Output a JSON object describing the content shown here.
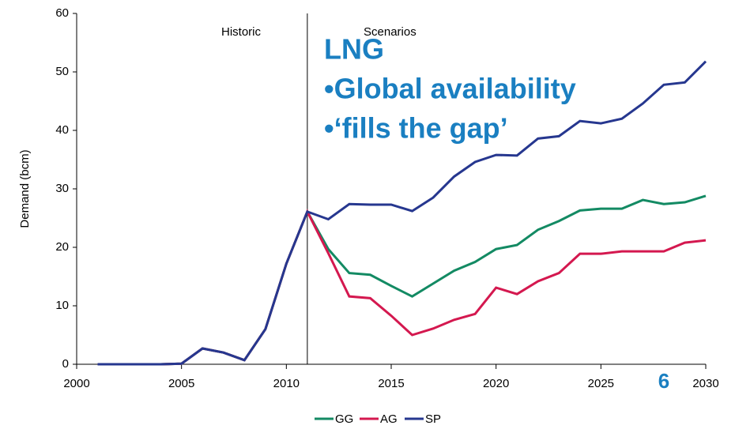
{
  "chart_data": {
    "type": "line",
    "y_label": "Demand (bcm)",
    "x": [
      2001,
      2002,
      2003,
      2004,
      2005,
      2006,
      2007,
      2008,
      2009,
      2010,
      2011,
      2012,
      2013,
      2014,
      2015,
      2016,
      2017,
      2018,
      2019,
      2020,
      2021,
      2022,
      2023,
      2024,
      2025,
      2026,
      2027,
      2028,
      2029,
      2030
    ],
    "series": [
      {
        "name": "GG",
        "color": "#138a63",
        "values": [
          0,
          0,
          0,
          0,
          0.1,
          2.7,
          2.0,
          0.7,
          6.0,
          17.2,
          26.1,
          19.7,
          15.6,
          15.3,
          13.4,
          11.6,
          13.8,
          16.0,
          17.5,
          19.7,
          20.4,
          23.0,
          24.5,
          26.3,
          26.6,
          26.6,
          28.1,
          27.4,
          27.7,
          28.8
        ]
      },
      {
        "name": "AG",
        "color": "#d4184f",
        "values": [
          0,
          0,
          0,
          0,
          0.1,
          2.7,
          2.0,
          0.7,
          6.0,
          17.2,
          26.1,
          19.0,
          11.6,
          11.3,
          8.3,
          5.0,
          6.1,
          7.6,
          8.6,
          13.1,
          12.0,
          14.2,
          15.6,
          18.9,
          18.9,
          19.3,
          19.3,
          19.3,
          20.8,
          21.2
        ]
      },
      {
        "name": "SP",
        "color": "#26378f",
        "values": [
          0,
          0,
          0,
          0,
          0.1,
          2.7,
          2.0,
          0.7,
          6.0,
          17.2,
          26.1,
          24.8,
          27.4,
          27.3,
          27.3,
          26.2,
          28.5,
          32.1,
          34.6,
          35.8,
          35.7,
          38.6,
          39.0,
          41.6,
          41.2,
          42.0,
          44.6,
          47.8,
          48.2,
          51.8
        ]
      }
    ],
    "xlim": [
      2000,
      2030
    ],
    "xticks": [
      2000,
      2005,
      2010,
      2015,
      2020,
      2025,
      2030
    ],
    "ylim": [
      0,
      60
    ],
    "yticks": [
      0,
      10,
      20,
      30,
      40,
      50,
      60
    ],
    "divider_x": 2011,
    "divider_labels": [
      "Historic",
      "Scenarios"
    ],
    "annotation": [
      "LNG",
      "•Global availability",
      "•‘fills the gap’"
    ],
    "page_number": "6",
    "legend": "bottom"
  }
}
